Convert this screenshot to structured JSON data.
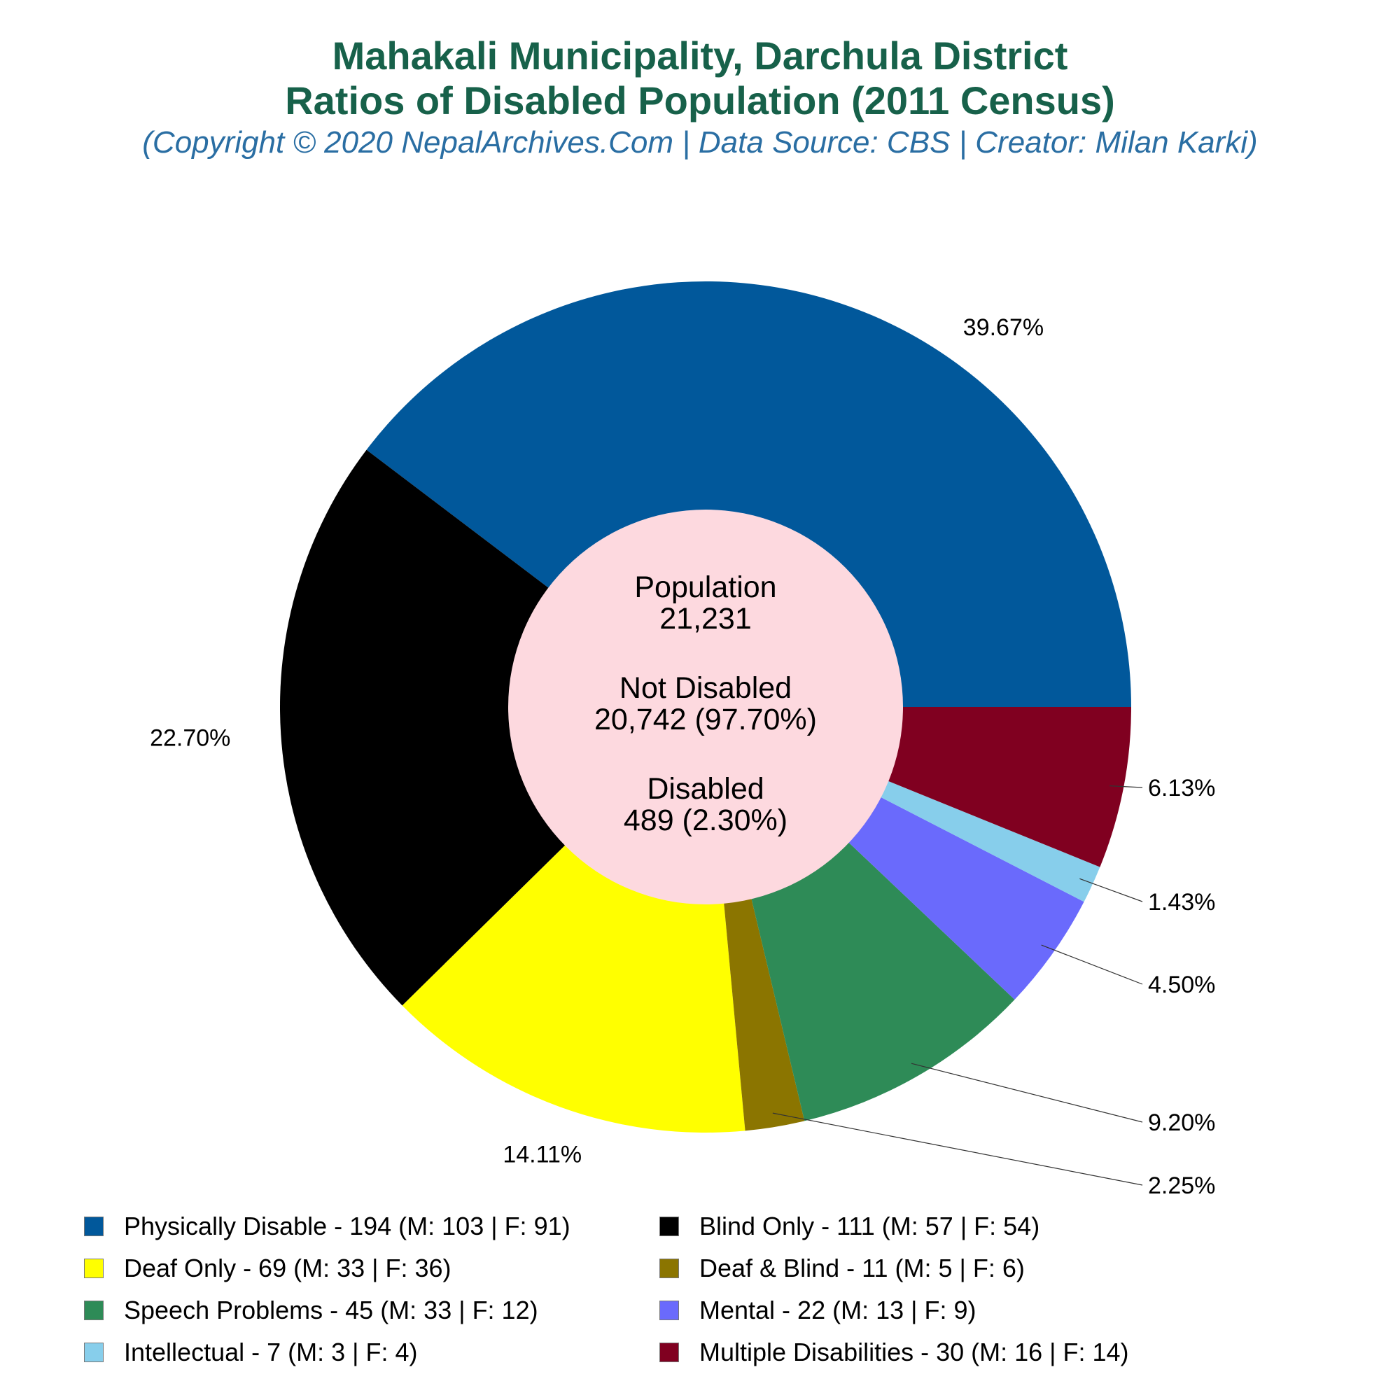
{
  "header": {
    "title_line1": "Mahakali Municipality, Darchula District",
    "title_line2": "Ratios of Disabled Population (2011 Census)",
    "subtitle": "(Copyright © 2020 NepalArchives.Com | Data Source: CBS | Creator: Milan Karki)"
  },
  "center": {
    "population_label": "Population",
    "population_value": "21,231",
    "not_disabled_label": "Not Disabled",
    "not_disabled_value": "20,742 (97.70%)",
    "disabled_label": "Disabled",
    "disabled_value": "489 (2.30%)",
    "color": "#fdd9df"
  },
  "chart_data": {
    "type": "pie",
    "donut": true,
    "title": "Mahakali Municipality, Darchula District Ratios of Disabled Population (2011 Census)",
    "slices": [
      {
        "name": "Physically Disable",
        "value": 194,
        "male": 103,
        "female": 91,
        "percent_label": "39.67%",
        "color": "#01589b",
        "legend": "Physically Disable - 194 (M: 103 | F: 91)"
      },
      {
        "name": "Blind Only",
        "value": 111,
        "male": 57,
        "female": 54,
        "percent_label": "22.70%",
        "color": "#000000",
        "legend": "Blind Only - 111 (M: 57 | F: 54)"
      },
      {
        "name": "Deaf Only",
        "value": 69,
        "male": 33,
        "female": 36,
        "percent_label": "14.11%",
        "color": "#ffff00",
        "legend": "Deaf Only - 69 (M: 33 | F: 36)"
      },
      {
        "name": "Deaf & Blind",
        "value": 11,
        "male": 5,
        "female": 6,
        "percent_label": "2.25%",
        "color": "#8b7500",
        "legend": "Deaf & Blind - 11 (M: 5 | F: 6)"
      },
      {
        "name": "Speech Problems",
        "value": 45,
        "male": 33,
        "female": 12,
        "percent_label": "9.20%",
        "color": "#2e8b57",
        "legend": "Speech Problems - 45 (M: 33 | F: 12)"
      },
      {
        "name": "Mental",
        "value": 22,
        "male": 13,
        "female": 9,
        "percent_label": "4.50%",
        "color": "#6a6afc",
        "legend": "Mental - 22 (M: 13 | F: 9)"
      },
      {
        "name": "Intellectual",
        "value": 7,
        "male": 3,
        "female": 4,
        "percent_label": "1.43%",
        "color": "#87ceeb",
        "legend": "Intellectual - 7 (M: 3 | F: 4)"
      },
      {
        "name": "Multiple Disabilities",
        "value": 30,
        "male": 16,
        "female": 14,
        "percent_label": "6.13%",
        "color": "#800020",
        "legend": "Multiple Disabilities - 30 (M: 16 | F: 14)"
      }
    ],
    "legend_placement": "bottom"
  }
}
